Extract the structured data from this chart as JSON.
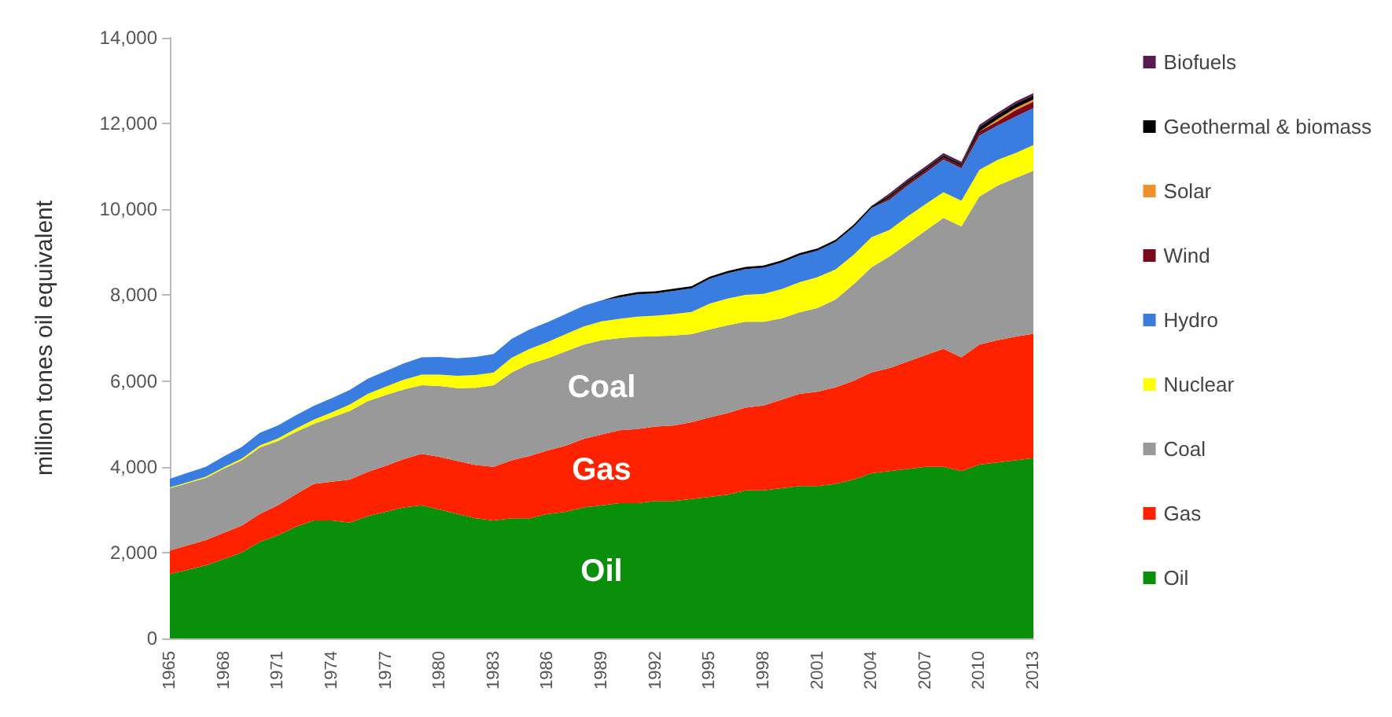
{
  "chart_data": {
    "type": "area",
    "stacked": true,
    "ylabel": "million tones oil equivalent",
    "categories": [
      "1965",
      null,
      null,
      "1968",
      null,
      null,
      "1971",
      null,
      null,
      "1974",
      null,
      null,
      "1977",
      null,
      null,
      "1980",
      null,
      null,
      "1983",
      null,
      null,
      "1986",
      null,
      null,
      "1989",
      null,
      null,
      "1992",
      null,
      null,
      "1995",
      null,
      null,
      "1998",
      null,
      null,
      "2001",
      null,
      null,
      "2004",
      null,
      null,
      "2007",
      null,
      null,
      "2010",
      null,
      null,
      "2013"
    ],
    "series": [
      {
        "name": "Oil",
        "color": "#0a8f0a",
        "values": [
          1500,
          1600,
          1700,
          1850,
          2000,
          2250,
          2400,
          2600,
          2750,
          2750,
          2700,
          2850,
          2950,
          3050,
          3100,
          3000,
          2900,
          2800,
          2750,
          2800,
          2800,
          2900,
          2950,
          3050,
          3100,
          3150,
          3150,
          3200,
          3200,
          3250,
          3300,
          3350,
          3450,
          3450,
          3500,
          3550,
          3550,
          3600,
          3700,
          3850,
          3900,
          3950,
          4000,
          4000,
          3900,
          4050,
          4100,
          4150,
          4200
        ]
      },
      {
        "name": "Gas",
        "color": "#ff2200",
        "values": [
          550,
          570,
          590,
          610,
          630,
          650,
          700,
          760,
          850,
          900,
          1000,
          1030,
          1070,
          1130,
          1200,
          1230,
          1230,
          1240,
          1250,
          1350,
          1450,
          1480,
          1540,
          1600,
          1650,
          1700,
          1730,
          1740,
          1760,
          1790,
          1850,
          1900,
          1930,
          1980,
          2060,
          2150,
          2200,
          2250,
          2300,
          2350,
          2400,
          2500,
          2600,
          2750,
          2650,
          2800,
          2850,
          2880,
          2900
        ]
      },
      {
        "name": "Coal",
        "color": "#999999",
        "values": [
          1450,
          1450,
          1450,
          1500,
          1520,
          1550,
          1500,
          1450,
          1400,
          1500,
          1600,
          1650,
          1650,
          1620,
          1600,
          1650,
          1700,
          1800,
          1900,
          2050,
          2150,
          2150,
          2200,
          2200,
          2200,
          2150,
          2150,
          2100,
          2100,
          2050,
          2050,
          2050,
          2000,
          1950,
          1900,
          1900,
          1950,
          2050,
          2250,
          2450,
          2600,
          2750,
          2900,
          3050,
          3050,
          3450,
          3600,
          3700,
          3800
        ]
      },
      {
        "name": "Nuclear",
        "color": "#ffff00",
        "values": [
          20,
          20,
          30,
          30,
          40,
          50,
          60,
          80,
          100,
          120,
          150,
          170,
          200,
          230,
          250,
          270,
          290,
          300,
          300,
          340,
          350,
          380,
          400,
          420,
          440,
          450,
          470,
          480,
          500,
          520,
          600,
          620,
          630,
          650,
          680,
          700,
          720,
          700,
          690,
          700,
          620,
          630,
          620,
          600,
          600,
          620,
          600,
          580,
          600
        ]
      },
      {
        "name": "Hydro",
        "color": "#3a7de0",
        "values": [
          200,
          220,
          230,
          250,
          270,
          290,
          300,
          310,
          320,
          330,
          340,
          350,
          360,
          380,
          400,
          410,
          410,
          420,
          430,
          440,
          450,
          460,
          470,
          480,
          490,
          500,
          520,
          520,
          540,
          550,
          580,
          590,
          600,
          610,
          620,
          630,
          620,
          640,
          650,
          680,
          700,
          720,
          730,
          760,
          760,
          800,
          800,
          850,
          860
        ]
      },
      {
        "name": "Wind",
        "color": "#7a0a1a",
        "values": [
          0,
          0,
          0,
          0,
          0,
          0,
          0,
          0,
          0,
          0,
          0,
          0,
          0,
          0,
          0,
          0,
          0,
          0,
          0,
          0,
          0,
          0,
          0,
          0,
          0,
          0,
          0,
          0,
          0,
          0,
          0,
          0,
          0,
          0,
          0,
          0,
          0,
          0,
          0,
          0,
          50,
          50,
          50,
          50,
          50,
          100,
          100,
          150,
          150
        ]
      },
      {
        "name": "Solar",
        "color": "#f0902a",
        "values": [
          0,
          0,
          0,
          0,
          0,
          0,
          0,
          0,
          0,
          0,
          0,
          0,
          0,
          0,
          0,
          0,
          0,
          0,
          0,
          0,
          0,
          0,
          0,
          0,
          0,
          0,
          0,
          0,
          0,
          0,
          0,
          0,
          0,
          0,
          0,
          0,
          0,
          0,
          0,
          0,
          0,
          0,
          0,
          0,
          0,
          0,
          50,
          50,
          50
        ]
      },
      {
        "name": "Geothermal & biomass",
        "color": "#000000",
        "values": [
          0,
          0,
          0,
          0,
          0,
          0,
          0,
          0,
          0,
          0,
          0,
          0,
          0,
          0,
          0,
          0,
          0,
          0,
          0,
          0,
          0,
          0,
          0,
          0,
          0,
          50,
          50,
          50,
          50,
          50,
          50,
          50,
          50,
          50,
          50,
          50,
          50,
          50,
          50,
          50,
          50,
          50,
          50,
          50,
          50,
          100,
          100,
          100,
          100
        ]
      },
      {
        "name": "Biofuels",
        "color": "#5a1a50",
        "values": [
          0,
          0,
          0,
          0,
          0,
          0,
          0,
          0,
          0,
          0,
          0,
          0,
          0,
          0,
          0,
          0,
          0,
          0,
          0,
          0,
          0,
          0,
          0,
          0,
          0,
          0,
          0,
          0,
          0,
          0,
          0,
          0,
          0,
          0,
          0,
          0,
          0,
          0,
          0,
          0,
          50,
          50,
          50,
          50,
          50,
          50,
          50,
          50,
          50
        ]
      }
    ],
    "ylim": [
      0,
      14000
    ],
    "yticks": [
      {
        "value": 0,
        "label": "0"
      },
      {
        "value": 2000,
        "label": "2,000"
      },
      {
        "value": 4000,
        "label": "4,000"
      },
      {
        "value": 6000,
        "label": "6,000"
      },
      {
        "value": 8000,
        "label": "8,000"
      },
      {
        "value": 10000,
        "label": "10,000"
      },
      {
        "value": 12000,
        "label": "12,000"
      },
      {
        "value": 14000,
        "label": "14,000"
      }
    ],
    "annotations": [
      "Coal",
      "Gas",
      "Oil"
    ],
    "legend": "right",
    "grid": false
  }
}
